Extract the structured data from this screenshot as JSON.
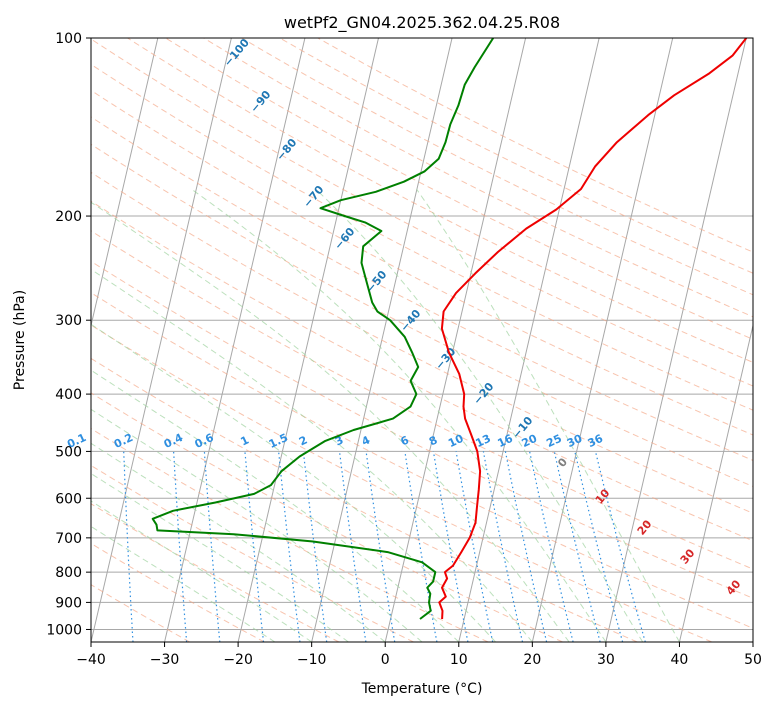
{
  "chart_data": {
    "type": "line",
    "subtype": "skew-t log-p diagram",
    "title": "wetPf2_GN04.2025.362.04.25.R08",
    "xlabel": "Temperature (°C)",
    "ylabel": "Pressure (hPa)",
    "xlim": [
      -40,
      50
    ],
    "ylim": [
      1050,
      100
    ],
    "y_scale": "log",
    "grid": true,
    "x_ticks": [
      "−40",
      "−30",
      "−20",
      "−10",
      "0",
      "10",
      "20",
      "30",
      "40",
      "50"
    ],
    "y_ticks": [
      "100",
      "200",
      "300",
      "400",
      "500",
      "600",
      "700",
      "800",
      "900",
      "1000"
    ],
    "colors": {
      "temperature": "#ee0000",
      "dewpoint": "#008000",
      "isotherm": "#a8a8a8",
      "dry_adiabat": "#f4a582",
      "moist_adiabat": "#9fd39f",
      "mixing_ratio": "#2f8fe0",
      "ann_blue": "#1f77b4",
      "ann_red": "#d62728"
    },
    "series": [
      {
        "key": "temperature",
        "points": [
          {
            "p": 960,
            "t": 7.0
          },
          {
            "p": 930,
            "t": 6.8
          },
          {
            "p": 900,
            "t": 6.1
          },
          {
            "p": 880,
            "t": 6.8
          },
          {
            "p": 850,
            "t": 6.0
          },
          {
            "p": 820,
            "t": 6.4
          },
          {
            "p": 800,
            "t": 5.9
          },
          {
            "p": 780,
            "t": 6.8
          },
          {
            "p": 740,
            "t": 7.5
          },
          {
            "p": 700,
            "t": 8.2
          },
          {
            "p": 660,
            "t": 8.5
          },
          {
            "p": 620,
            "t": 8.2
          },
          {
            "p": 580,
            "t": 7.9
          },
          {
            "p": 540,
            "t": 7.5
          },
          {
            "p": 500,
            "t": 6.5
          },
          {
            "p": 470,
            "t": 5.2
          },
          {
            "p": 440,
            "t": 3.8
          },
          {
            "p": 420,
            "t": 3.2
          },
          {
            "p": 400,
            "t": 2.9
          },
          {
            "p": 370,
            "t": 1.6
          },
          {
            "p": 340,
            "t": -0.5
          },
          {
            "p": 310,
            "t": -2.2
          },
          {
            "p": 290,
            "t": -2.5
          },
          {
            "p": 270,
            "t": -1.4
          },
          {
            "p": 250,
            "t": 0.6
          },
          {
            "p": 230,
            "t": 3.0
          },
          {
            "p": 210,
            "t": 6.1
          },
          {
            "p": 195,
            "t": 9.6
          },
          {
            "p": 180,
            "t": 12.3
          },
          {
            "p": 165,
            "t": 13.5
          },
          {
            "p": 150,
            "t": 15.7
          },
          {
            "p": 135,
            "t": 19.1
          },
          {
            "p": 125,
            "t": 22.0
          },
          {
            "p": 115,
            "t": 26.0
          },
          {
            "p": 107,
            "t": 28.7
          },
          {
            "p": 100,
            "t": 30.0
          }
        ]
      },
      {
        "key": "dewpoint",
        "points": [
          {
            "p": 960,
            "t": 4.0
          },
          {
            "p": 930,
            "t": 5.2
          },
          {
            "p": 900,
            "t": 4.7
          },
          {
            "p": 870,
            "t": 4.6
          },
          {
            "p": 850,
            "t": 4.0
          },
          {
            "p": 830,
            "t": 4.6
          },
          {
            "p": 800,
            "t": 4.6
          },
          {
            "p": 770,
            "t": 2.5
          },
          {
            "p": 740,
            "t": -2.5
          },
          {
            "p": 710,
            "t": -13.0
          },
          {
            "p": 690,
            "t": -24.0
          },
          {
            "p": 680,
            "t": -34.5
          },
          {
            "p": 665,
            "t": -34.8
          },
          {
            "p": 650,
            "t": -35.5
          },
          {
            "p": 630,
            "t": -33.0
          },
          {
            "p": 610,
            "t": -27.5
          },
          {
            "p": 590,
            "t": -22.5
          },
          {
            "p": 570,
            "t": -20.5
          },
          {
            "p": 540,
            "t": -19.5
          },
          {
            "p": 510,
            "t": -17.5
          },
          {
            "p": 480,
            "t": -14.5
          },
          {
            "p": 460,
            "t": -11.0
          },
          {
            "p": 440,
            "t": -6.0
          },
          {
            "p": 420,
            "t": -4.0
          },
          {
            "p": 400,
            "t": -3.6
          },
          {
            "p": 380,
            "t": -4.8
          },
          {
            "p": 360,
            "t": -4.2
          },
          {
            "p": 340,
            "t": -5.5
          },
          {
            "p": 320,
            "t": -7.0
          },
          {
            "p": 300,
            "t": -9.5
          },
          {
            "p": 290,
            "t": -11.5
          },
          {
            "p": 280,
            "t": -12.5
          },
          {
            "p": 260,
            "t": -13.8
          },
          {
            "p": 240,
            "t": -15.2
          },
          {
            "p": 225,
            "t": -15.5
          },
          {
            "p": 212,
            "t": -13.5
          },
          {
            "p": 205,
            "t": -16.0
          },
          {
            "p": 200,
            "t": -19.0
          },
          {
            "p": 194,
            "t": -22.5
          },
          {
            "p": 188,
            "t": -20.0
          },
          {
            "p": 182,
            "t": -15.5
          },
          {
            "p": 175,
            "t": -12.0
          },
          {
            "p": 168,
            "t": -9.5
          },
          {
            "p": 160,
            "t": -8.0
          },
          {
            "p": 150,
            "t": -7.6
          },
          {
            "p": 140,
            "t": -7.5
          },
          {
            "p": 130,
            "t": -7.0
          },
          {
            "p": 120,
            "t": -6.8
          },
          {
            "p": 112,
            "t": -6.0
          },
          {
            "p": 100,
            "t": -4.4
          }
        ]
      }
    ],
    "dry_adiabat_labels": [
      "−100",
      "−90",
      "−80",
      "−70",
      "−60",
      "−50",
      "−40",
      "−30",
      "−20",
      "−10"
    ],
    "moist_adiabat_labels": [
      "0",
      "10",
      "20",
      "30",
      "40"
    ],
    "mixing_ratio_labels": [
      "0.1",
      "0.2",
      "0.4",
      "0.6",
      "1",
      "1.5",
      "2",
      "3",
      "4",
      "6",
      "8",
      "10",
      "13",
      "16",
      "20",
      "25",
      "30",
      "36"
    ]
  }
}
